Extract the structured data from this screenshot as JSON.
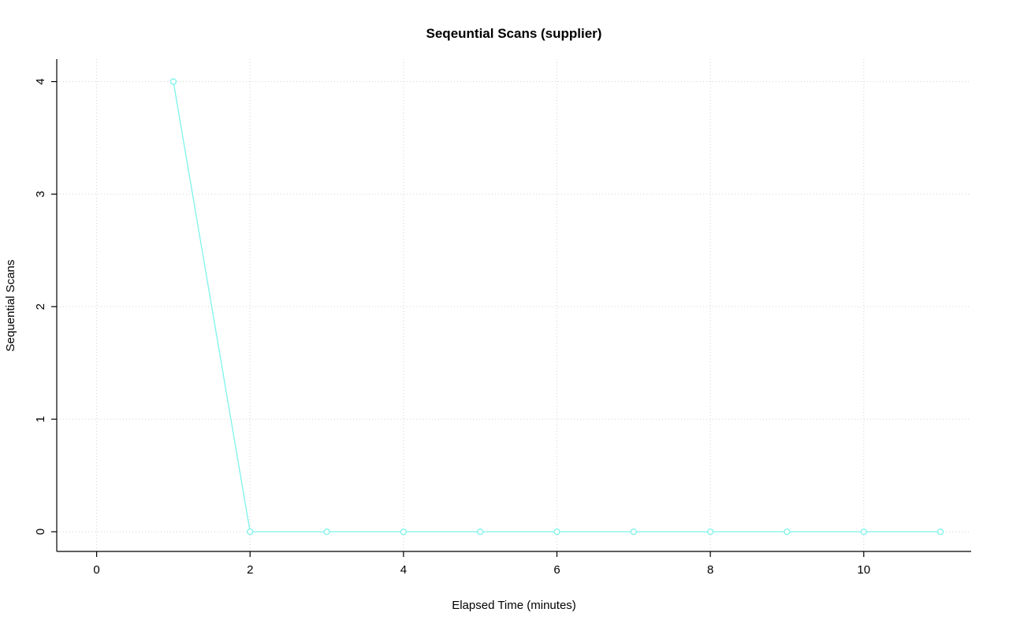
{
  "chart_data": {
    "type": "line",
    "title": "Seqeuntial Scans (supplier)",
    "xlabel": "Elapsed Time (minutes)",
    "ylabel": "Sequential Scans",
    "x": [
      1,
      2,
      3,
      4,
      5,
      6,
      7,
      8,
      9,
      10,
      11
    ],
    "y": [
      4,
      0,
      0,
      0,
      0,
      0,
      0,
      0,
      0,
      0,
      0
    ],
    "xlim": [
      -0.52,
      11.4
    ],
    "ylim": [
      -0.175,
      4.2
    ],
    "xticks": [
      0,
      2,
      4,
      6,
      8,
      10
    ],
    "yticks": [
      0,
      1,
      2,
      3,
      4
    ],
    "grid": true,
    "grid_style": "dotted",
    "legend": "none",
    "marker": "open-circle",
    "line_style": "solid",
    "colors": {
      "series": "#7DF2EA",
      "grid": "#D3D3D3",
      "axis": "#000000",
      "text": "#000000",
      "background": "#FFFFFF"
    }
  }
}
